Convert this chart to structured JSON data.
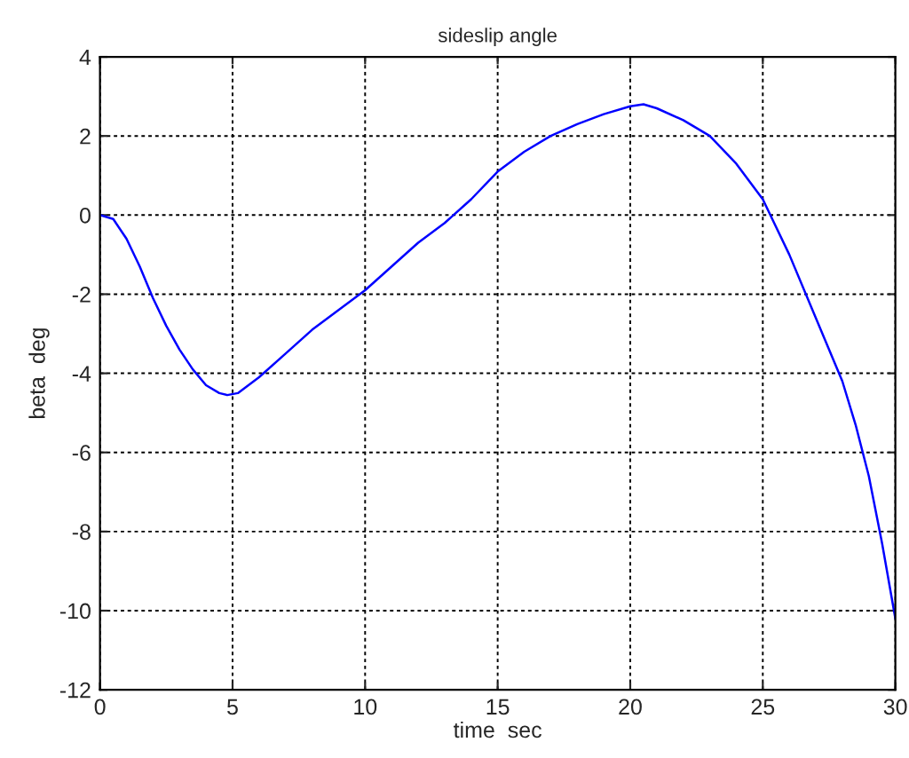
{
  "chart_data": {
    "type": "line",
    "title": "sideslip angle",
    "xlabel": "time  sec",
    "ylabel": "beta  deg",
    "x": [
      0,
      0.5,
      1,
      1.5,
      2,
      2.5,
      3,
      3.5,
      4,
      4.5,
      4.8,
      5.2,
      6,
      7,
      8,
      9,
      10,
      11,
      12,
      13,
      14,
      15,
      16,
      17,
      18,
      19,
      20,
      20.5,
      21,
      22,
      23,
      24,
      25,
      26,
      27,
      28,
      28.5,
      29,
      29.5,
      30
    ],
    "series": [
      {
        "color": "#0000ff",
        "values": [
          0,
          -0.1,
          -0.6,
          -1.3,
          -2.1,
          -2.8,
          -3.4,
          -3.9,
          -4.3,
          -4.5,
          -4.55,
          -4.5,
          -4.1,
          -3.5,
          -2.9,
          -2.4,
          -1.9,
          -1.3,
          -0.7,
          -0.2,
          0.4,
          1.1,
          1.6,
          2.0,
          2.3,
          2.55,
          2.75,
          2.8,
          2.7,
          2.4,
          2.0,
          1.3,
          0.4,
          -1.0,
          -2.6,
          -4.2,
          -5.3,
          -6.6,
          -8.3,
          -10.2
        ]
      }
    ],
    "xlim": [
      0,
      30
    ],
    "ylim": [
      -12,
      4
    ],
    "xticks": [
      0,
      5,
      10,
      15,
      20,
      25,
      30
    ],
    "yticks": [
      -12,
      -10,
      -8,
      -6,
      -4,
      -2,
      0,
      2,
      4
    ],
    "grid": true,
    "line_style": "solid"
  }
}
